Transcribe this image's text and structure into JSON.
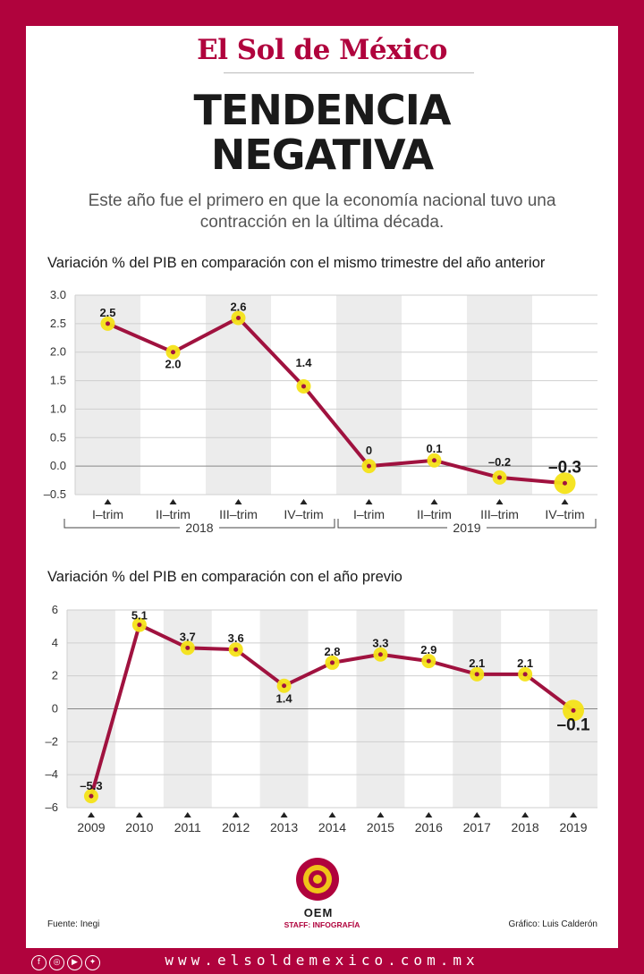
{
  "brand": "El Sol de México",
  "headline": {
    "line1": "TENDENCIA",
    "line2": "NEGATIVA"
  },
  "subtitle": {
    "line1": "Este año fue el primero en que la economía nacional tuvo una",
    "line2": "contracción en la última década."
  },
  "footer": {
    "source": "Fuente: Inegi",
    "staff": "STAFF: INFOGRAFÍA",
    "credit": "Gráfico: Luis Calderón",
    "logo_text": "OEM",
    "url": "www.elsoldemexico.com.mx"
  },
  "social_icons": [
    "facebook-icon",
    "instagram-icon",
    "youtube-icon",
    "twitter-icon"
  ],
  "colors": {
    "brand": "#b0033d",
    "line": "#a0123f",
    "marker": "#f4e318",
    "band": "#ececec"
  },
  "chart_data": [
    {
      "type": "line",
      "title": "Variación % del PIB en comparación con el mismo trimestre del año anterior",
      "categories": [
        "I–trim",
        "II–trim",
        "III–trim",
        "IV–trim",
        "I–trim",
        "II–trim",
        "III–trim",
        "IV–trim"
      ],
      "groups": [
        {
          "label": "2018",
          "span": [
            0,
            3
          ]
        },
        {
          "label": "2019",
          "span": [
            4,
            7
          ]
        }
      ],
      "values": [
        2.5,
        2.0,
        2.6,
        1.4,
        0,
        0.1,
        -0.2,
        -0.3
      ],
      "value_labels": [
        "2.5",
        "2.0",
        "2.6",
        "1.4",
        "0",
        "0.1",
        "–0.2",
        "–0.3"
      ],
      "yticks": [
        "3.0",
        "2.5",
        "2.0",
        "1.5",
        "1.0",
        "0.5",
        "0.0",
        "–0.5"
      ],
      "ylim": [
        -0.5,
        3.0
      ],
      "highlight_last": true
    },
    {
      "type": "line",
      "title": "Variación % del PIB en comparación con el año previo",
      "categories": [
        "2009",
        "2010",
        "2011",
        "2012",
        "2013",
        "2014",
        "2015",
        "2016",
        "2017",
        "2018",
        "2019"
      ],
      "values": [
        -5.3,
        5.1,
        3.7,
        3.6,
        1.4,
        2.8,
        3.3,
        2.9,
        2.1,
        2.1,
        -0.1
      ],
      "value_labels": [
        "–5.3",
        "5.1",
        "3.7",
        "3.6",
        "1.4",
        "2.8",
        "3.3",
        "2.9",
        "2.1",
        "2.1",
        "–0.1"
      ],
      "yticks": [
        "6",
        "4",
        "2",
        "0",
        "–2",
        "–4",
        "–6"
      ],
      "ylim": [
        -6,
        6
      ],
      "highlight_last": true
    }
  ]
}
